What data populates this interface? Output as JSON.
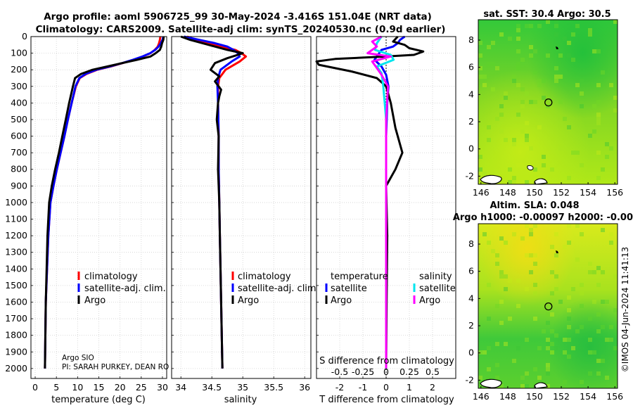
{
  "title": {
    "line1": "Argo profile: aoml 5906725_99 30-May-2024 -3.416S 151.04E (NRT data)",
    "line2": "Climatology: CARS2009. Satellite-adj clim: synTS_20240530.nc (0.9d earlier)"
  },
  "credits": {
    "line1": "Argo SIO",
    "line2": "PI: SARAH PURKEY, DEAN RO"
  },
  "side_stamp": "©IMOS 04-Jun-2024 11:41:13",
  "colors": {
    "climatology": "#ff0000",
    "satellite_adj": "#0000ff",
    "argo": "#000000",
    "salinity_satellite": "#00e5ee",
    "salinity_argo": "#ff00ff",
    "map_fill": "#7fdd20"
  },
  "chart_data": [
    {
      "id": "temperature",
      "type": "line",
      "xlabel": "temperature (deg C)",
      "ylabel": "",
      "xlim": [
        -1,
        31
      ],
      "ylim": [
        2060,
        0
      ],
      "xticks": [
        0,
        5,
        10,
        15,
        20,
        25,
        30
      ],
      "yticks": [
        0,
        100,
        200,
        300,
        400,
        500,
        600,
        700,
        800,
        900,
        1000,
        1100,
        1200,
        1300,
        1400,
        1500,
        1600,
        1700,
        1800,
        1900,
        2000
      ],
      "grid": true,
      "legend": {
        "position": "lower-right",
        "entries": [
          "climatology",
          "satellite-adj. clim.",
          "Argo"
        ]
      },
      "series": [
        {
          "name": "climatology",
          "color": "#ff0000",
          "x": [
            29.5,
            29.4,
            29.2,
            28.9,
            28.2,
            27.2,
            25.4,
            23.2,
            20.6,
            17.8,
            14.6,
            12.1,
            10.5,
            9.6,
            8.6,
            7.7,
            6.9,
            6.0,
            5.1,
            4.3,
            3.6,
            3.1,
            2.8,
            2.5,
            2.4,
            2.3
          ],
          "y": [
            0,
            20,
            40,
            60,
            80,
            100,
            120,
            140,
            160,
            180,
            200,
            225,
            250,
            300,
            400,
            500,
            600,
            700,
            800,
            900,
            1000,
            1200,
            1400,
            1600,
            1800,
            2000
          ]
        },
        {
          "name": "satellite-adj. clim.",
          "color": "#0000ff",
          "x": [
            30.2,
            30.0,
            29.6,
            29.1,
            28.3,
            27.1,
            25.3,
            23.0,
            20.5,
            17.6,
            14.4,
            11.9,
            10.4,
            9.5,
            8.6,
            7.7,
            6.9,
            6.0,
            5.1,
            4.3,
            3.6,
            3.1,
            2.8,
            2.5,
            2.4,
            2.3
          ],
          "y": [
            0,
            20,
            40,
            60,
            80,
            100,
            120,
            140,
            160,
            180,
            200,
            225,
            250,
            300,
            400,
            500,
            600,
            700,
            800,
            900,
            1000,
            1200,
            1400,
            1600,
            1800,
            2000
          ]
        },
        {
          "name": "Argo",
          "color": "#000000",
          "x": [
            30.3,
            30.2,
            29.9,
            29.7,
            29.4,
            28.4,
            27.2,
            24.0,
            20.5,
            17.0,
            13.5,
            10.8,
            9.4,
            8.9,
            8.0,
            7.2,
            6.4,
            5.6,
            4.7,
            3.9,
            3.3,
            2.9,
            2.7,
            2.5,
            2.4,
            2.3
          ],
          "y": [
            0,
            20,
            40,
            60,
            80,
            100,
            120,
            140,
            160,
            180,
            200,
            225,
            250,
            300,
            400,
            500,
            600,
            700,
            800,
            900,
            1000,
            1200,
            1400,
            1600,
            1800,
            2000
          ]
        }
      ]
    },
    {
      "id": "salinity",
      "type": "line",
      "xlabel": "salinity",
      "xlim": [
        33.85,
        36.1
      ],
      "ylim": [
        2060,
        0
      ],
      "xticks": [
        34,
        34.5,
        35,
        35.5,
        36
      ],
      "grid": true,
      "legend": {
        "position": "lower-right",
        "entries": [
          "climatology",
          "satellite-adj. clim.",
          "Argo"
        ]
      },
      "series": [
        {
          "name": "climatology",
          "color": "#ff0000",
          "x": [
            34.1,
            34.25,
            34.45,
            34.65,
            34.88,
            34.98,
            35.05,
            34.95,
            34.72,
            34.62,
            34.6,
            34.6,
            34.61,
            34.61,
            34.62,
            34.63,
            34.64,
            34.65,
            34.66,
            34.67
          ],
          "y": [
            0,
            20,
            40,
            60,
            80,
            100,
            120,
            150,
            200,
            250,
            300,
            400,
            600,
            800,
            1000,
            1200,
            1400,
            1600,
            1800,
            2000
          ]
        },
        {
          "name": "satellite-adj. clim.",
          "color": "#0000ff",
          "x": [
            34.05,
            34.3,
            34.55,
            34.75,
            34.85,
            34.92,
            34.95,
            34.82,
            34.64,
            34.6,
            34.59,
            34.6,
            34.61,
            34.61,
            34.62,
            34.63,
            34.64,
            34.65,
            34.66,
            34.67
          ],
          "y": [
            0,
            20,
            40,
            60,
            80,
            100,
            120,
            150,
            200,
            250,
            300,
            400,
            600,
            800,
            1000,
            1200,
            1400,
            1600,
            1800,
            2000
          ]
        },
        {
          "name": "Argo",
          "color": "#000000",
          "x": [
            34.0,
            34.15,
            34.35,
            34.55,
            34.75,
            35.0,
            34.88,
            34.75,
            34.55,
            34.48,
            34.62,
            34.55,
            34.65,
            34.62,
            34.6,
            34.58,
            34.61,
            34.6,
            34.62,
            34.63,
            34.64,
            34.65,
            34.66,
            34.67
          ],
          "y": [
            0,
            20,
            40,
            60,
            80,
            100,
            115,
            130,
            160,
            200,
            240,
            270,
            320,
            360,
            400,
            500,
            600,
            800,
            1000,
            1200,
            1400,
            1600,
            1800,
            2000
          ]
        }
      ]
    },
    {
      "id": "difference",
      "type": "line",
      "xlabel": "T difference from climatology",
      "top_xlabel": "S difference from climatology",
      "xlim": [
        -3,
        3
      ],
      "top_xlim": [
        -0.75,
        0.75
      ],
      "ylim": [
        2060,
        0
      ],
      "xticks": [
        -2,
        -1,
        0,
        1,
        2
      ],
      "top_xticks": [
        -0.5,
        -0.25,
        0,
        0.25,
        0.5
      ],
      "top_xtick_labels": [
        "-0.5",
        "-0.25",
        "0",
        "0.25",
        "0.5"
      ],
      "grid": true,
      "legend": {
        "position": "lower",
        "temperature_title": "temperature",
        "salinity_title": "salinity",
        "temperature_entries": [
          "satellite",
          "Argo"
        ],
        "salinity_entries": [
          "satellite",
          "Argo"
        ]
      },
      "series": [
        {
          "name": "temperature satellite",
          "color": "#0000ff",
          "axis": "T",
          "x": [
            0.8,
            0.6,
            0.5,
            0.3,
            -0.2,
            -0.3,
            -0.5,
            -0.2,
            0.0,
            0.1,
            0.05,
            0.0,
            0.0
          ],
          "y": [
            0,
            20,
            40,
            60,
            80,
            100,
            140,
            180,
            230,
            300,
            400,
            600,
            2000
          ]
        },
        {
          "name": "temperature Argo",
          "color": "#000000",
          "axis": "T",
          "x": [
            0.5,
            0.3,
            0.8,
            1.0,
            1.6,
            1.2,
            0.0,
            -2.2,
            -3.0,
            -2.9,
            -1.5,
            -0.4,
            0.0,
            0.2,
            0.4,
            0.7,
            0.4,
            0.0,
            0.05,
            0.02,
            0.0
          ],
          "y": [
            0,
            30,
            50,
            70,
            90,
            110,
            120,
            135,
            150,
            170,
            210,
            250,
            300,
            400,
            550,
            700,
            800,
            900,
            1200,
            1600,
            2000
          ]
        },
        {
          "name": "salinity satellite",
          "color": "#00e5ee",
          "axis": "S",
          "x": [
            -0.05,
            -0.1,
            -0.12,
            0.05,
            0.08,
            -0.1,
            -0.05,
            -0.03,
            0.0,
            0.0
          ],
          "y": [
            0,
            40,
            80,
            110,
            140,
            180,
            220,
            300,
            500,
            2000
          ]
        },
        {
          "name": "salinity Argo",
          "color": "#ff00ff",
          "axis": "S",
          "x": [
            -0.05,
            -0.15,
            -0.1,
            -0.2,
            0.05,
            -0.15,
            -0.1,
            -0.05,
            0.02,
            0.0,
            0.0
          ],
          "y": [
            0,
            30,
            60,
            100,
            120,
            150,
            190,
            230,
            300,
            500,
            2000
          ]
        }
      ]
    },
    {
      "id": "sst_map",
      "type": "heatmap",
      "title": "sat. SST: 30.4 Argo: 30.5",
      "xticks": [
        146,
        148,
        150,
        152,
        154,
        156
      ],
      "yticks": [
        -2,
        0,
        2,
        4,
        6,
        8
      ],
      "xlim": [
        145.8,
        156.2
      ],
      "ylim": [
        -2.6,
        9.5
      ],
      "float_position": [
        151.04,
        3.416
      ]
    },
    {
      "id": "sla_map",
      "type": "heatmap",
      "title": "Altim. SLA: 0.048",
      "subtitle": "Argo h1000: -0.00097 h2000: -0.00",
      "xticks": [
        146,
        148,
        150,
        152,
        154,
        156
      ],
      "yticks": [
        -2,
        0,
        2,
        4,
        6,
        8
      ],
      "xlim": [
        145.8,
        156.2
      ],
      "ylim": [
        -2.6,
        9.5
      ],
      "float_position": [
        151.04,
        3.416
      ]
    }
  ]
}
